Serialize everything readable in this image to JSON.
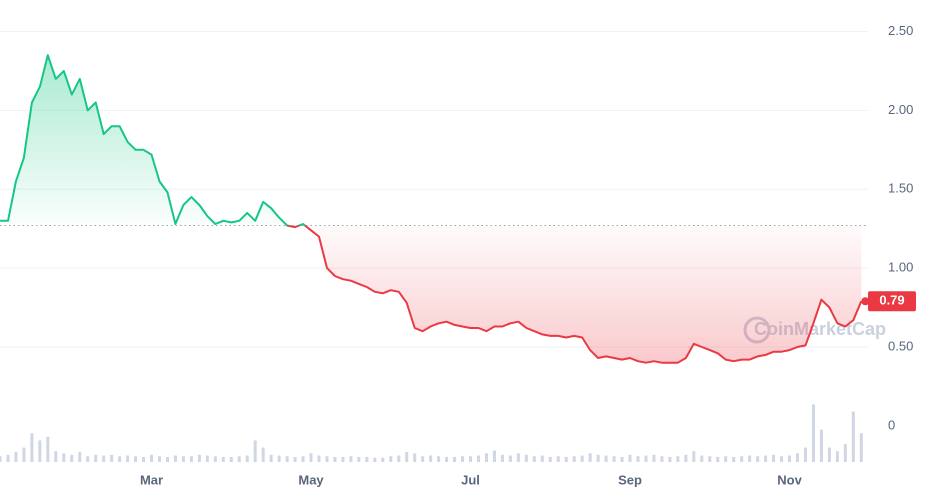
{
  "chart_data": {
    "type": "line",
    "reference": 1.27,
    "watermark": "CoinMarketCap",
    "up_color": "#16c784",
    "down_color": "#ea3943",
    "ylim": [
      0.25,
      2.7
    ],
    "yticks": [
      {
        "value": 2.5,
        "label": "2.50"
      },
      {
        "value": 2.0,
        "label": "2.00"
      },
      {
        "value": 1.5,
        "label": "1.50"
      },
      {
        "value": 1.0,
        "label": "1.00"
      },
      {
        "value": 0.5,
        "label": "0.50"
      }
    ],
    "grid": true,
    "categories": [
      null,
      null,
      null,
      null,
      null,
      null,
      null,
      null,
      null,
      null,
      null,
      null,
      null,
      null,
      null,
      null,
      null,
      null,
      null,
      "Mar",
      null,
      null,
      null,
      null,
      null,
      null,
      null,
      null,
      null,
      null,
      null,
      null,
      null,
      null,
      null,
      null,
      null,
      null,
      null,
      "May",
      null,
      null,
      null,
      null,
      null,
      null,
      null,
      null,
      null,
      null,
      null,
      null,
      null,
      null,
      null,
      null,
      null,
      null,
      null,
      "Jul",
      null,
      null,
      null,
      null,
      null,
      null,
      null,
      null,
      null,
      null,
      null,
      null,
      null,
      null,
      null,
      null,
      null,
      null,
      null,
      "Sep",
      null,
      null,
      null,
      null,
      null,
      null,
      null,
      null,
      null,
      null,
      null,
      null,
      null,
      null,
      null,
      null,
      null,
      null,
      null,
      "Nov",
      null,
      null,
      null,
      null,
      null,
      null,
      null,
      null,
      null
    ],
    "values": [
      1.3,
      1.3,
      1.55,
      1.7,
      2.05,
      2.15,
      2.35,
      2.2,
      2.25,
      2.1,
      2.2,
      2.0,
      2.05,
      1.85,
      1.9,
      1.9,
      1.8,
      1.75,
      1.75,
      1.72,
      1.55,
      1.48,
      1.28,
      1.4,
      1.45,
      1.4,
      1.33,
      1.28,
      1.3,
      1.29,
      1.3,
      1.35,
      1.3,
      1.42,
      1.38,
      1.32,
      1.27,
      1.26,
      1.28,
      1.24,
      1.2,
      1.0,
      0.95,
      0.93,
      0.92,
      0.9,
      0.88,
      0.85,
      0.84,
      0.86,
      0.85,
      0.78,
      0.62,
      0.6,
      0.63,
      0.65,
      0.66,
      0.64,
      0.63,
      0.62,
      0.62,
      0.6,
      0.63,
      0.63,
      0.65,
      0.66,
      0.62,
      0.6,
      0.58,
      0.57,
      0.57,
      0.56,
      0.57,
      0.56,
      0.48,
      0.43,
      0.44,
      0.43,
      0.42,
      0.43,
      0.41,
      0.4,
      0.41,
      0.4,
      0.4,
      0.4,
      0.43,
      0.52,
      0.5,
      0.48,
      0.46,
      0.42,
      0.41,
      0.42,
      0.42,
      0.44,
      0.45,
      0.47,
      0.47,
      0.48,
      0.5,
      0.51,
      0.65,
      0.8,
      0.75,
      0.65,
      0.63,
      0.67,
      0.79
    ],
    "volume": {
      "color": "#cfd6e4",
      "ylim": [
        0,
        100
      ],
      "yticks": [
        0
      ],
      "values": [
        8,
        10,
        14,
        20,
        40,
        30,
        35,
        15,
        12,
        10,
        14,
        8,
        10,
        9,
        10,
        8,
        9,
        8,
        7,
        10,
        8,
        7,
        9,
        8,
        8,
        10,
        9,
        8,
        7,
        7,
        8,
        9,
        30,
        20,
        10,
        9,
        8,
        7,
        8,
        12,
        9,
        8,
        7,
        7,
        8,
        7,
        7,
        6,
        6,
        8,
        9,
        14,
        12,
        8,
        9,
        8,
        7,
        7,
        8,
        8,
        9,
        12,
        16,
        10,
        9,
        12,
        10,
        8,
        9,
        7,
        8,
        7,
        8,
        9,
        12,
        10,
        9,
        8,
        7,
        10,
        8,
        9,
        10,
        8,
        7,
        8,
        10,
        15,
        9,
        8,
        7,
        8,
        7,
        8,
        9,
        8,
        9,
        10,
        8,
        9,
        12,
        20,
        80,
        45,
        20,
        15,
        25,
        70,
        40
      ]
    }
  }
}
